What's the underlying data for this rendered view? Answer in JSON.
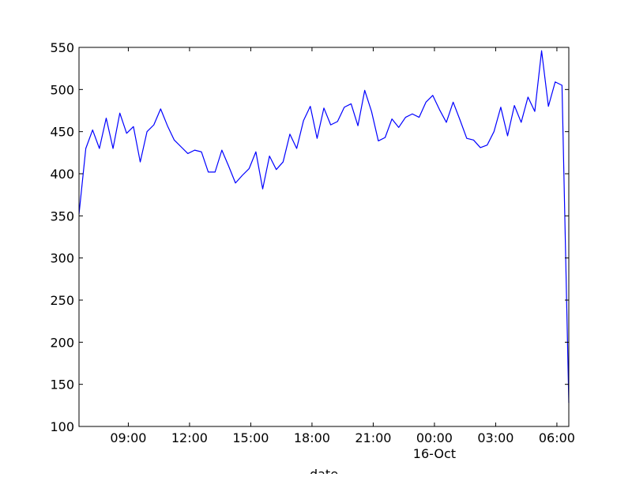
{
  "chart_data": {
    "type": "line",
    "title": "",
    "xlabel": "date",
    "ylabel": "",
    "ylim": [
      100,
      550
    ],
    "xlim": [
      "2015-10-15T06:35",
      "2015-10-16T06:35"
    ],
    "yticks": [
      100,
      150,
      200,
      250,
      300,
      350,
      400,
      450,
      500,
      550
    ],
    "xticks": [
      {
        "value": "2015-10-15T09:00",
        "label": "09:00",
        "sublabel": ""
      },
      {
        "value": "2015-10-15T12:00",
        "label": "12:00",
        "sublabel": ""
      },
      {
        "value": "2015-10-15T15:00",
        "label": "15:00",
        "sublabel": ""
      },
      {
        "value": "2015-10-15T18:00",
        "label": "18:00",
        "sublabel": ""
      },
      {
        "value": "2015-10-15T21:00",
        "label": "21:00",
        "sublabel": ""
      },
      {
        "value": "2015-10-16T00:00",
        "label": "00:00",
        "sublabel": "16-Oct"
      },
      {
        "value": "2015-10-16T03:00",
        "label": "03:00",
        "sublabel": ""
      },
      {
        "value": "2015-10-16T06:00",
        "label": "06:00",
        "sublabel": ""
      }
    ],
    "grid": false,
    "legend": "none",
    "line_color": "#0000ff",
    "series": [
      {
        "x": [
          "2015-10-15T06:35",
          "2015-10-15T06:55",
          "2015-10-15T07:15",
          "2015-10-15T07:35",
          "2015-10-15T07:55",
          "2015-10-15T08:15",
          "2015-10-15T08:35",
          "2015-10-15T08:55",
          "2015-10-15T09:15",
          "2015-10-15T09:35",
          "2015-10-15T09:55",
          "2015-10-15T10:15",
          "2015-10-15T10:35",
          "2015-10-15T10:55",
          "2015-10-15T11:15",
          "2015-10-15T11:35",
          "2015-10-15T11:55",
          "2015-10-15T12:15",
          "2015-10-15T12:35",
          "2015-10-15T12:55",
          "2015-10-15T13:15",
          "2015-10-15T13:35",
          "2015-10-15T13:55",
          "2015-10-15T14:15",
          "2015-10-15T14:35",
          "2015-10-15T14:55",
          "2015-10-15T15:15",
          "2015-10-15T15:35",
          "2015-10-15T15:55",
          "2015-10-15T16:15",
          "2015-10-15T16:35",
          "2015-10-15T16:55",
          "2015-10-15T17:15",
          "2015-10-15T17:35",
          "2015-10-15T17:55",
          "2015-10-15T18:15",
          "2015-10-15T18:35",
          "2015-10-15T18:55",
          "2015-10-15T19:15",
          "2015-10-15T19:35",
          "2015-10-15T19:55",
          "2015-10-15T20:15",
          "2015-10-15T20:35",
          "2015-10-15T20:55",
          "2015-10-15T21:15",
          "2015-10-15T21:35",
          "2015-10-15T21:55",
          "2015-10-15T22:15",
          "2015-10-15T22:35",
          "2015-10-15T22:55",
          "2015-10-15T23:15",
          "2015-10-15T23:35",
          "2015-10-15T23:55",
          "2015-10-16T00:15",
          "2015-10-16T00:35",
          "2015-10-16T00:55",
          "2015-10-16T01:15",
          "2015-10-16T01:35",
          "2015-10-16T01:55",
          "2015-10-16T02:15",
          "2015-10-16T02:35",
          "2015-10-16T02:55",
          "2015-10-16T03:15",
          "2015-10-16T03:35",
          "2015-10-16T03:55",
          "2015-10-16T04:15",
          "2015-10-16T04:35",
          "2015-10-16T04:55",
          "2015-10-16T05:15",
          "2015-10-16T05:35",
          "2015-10-16T05:55",
          "2015-10-16T06:15",
          "2015-10-16T06:35"
        ],
        "values": [
          352,
          430,
          452,
          430,
          466,
          430,
          472,
          448,
          456,
          414,
          450,
          458,
          477,
          457,
          440,
          432,
          424,
          428,
          426,
          402,
          402,
          428,
          409,
          389,
          398,
          406,
          426,
          382,
          421,
          405,
          414,
          447,
          430,
          463,
          480,
          442,
          478,
          458,
          462,
          479,
          483,
          457,
          499,
          474,
          439,
          443,
          465,
          455,
          467,
          471,
          467,
          485,
          493,
          476,
          461,
          485,
          464,
          442,
          440,
          431,
          434,
          450,
          479,
          445,
          481,
          461,
          491,
          474,
          546,
          480,
          509,
          505,
          128
        ]
      }
    ]
  }
}
